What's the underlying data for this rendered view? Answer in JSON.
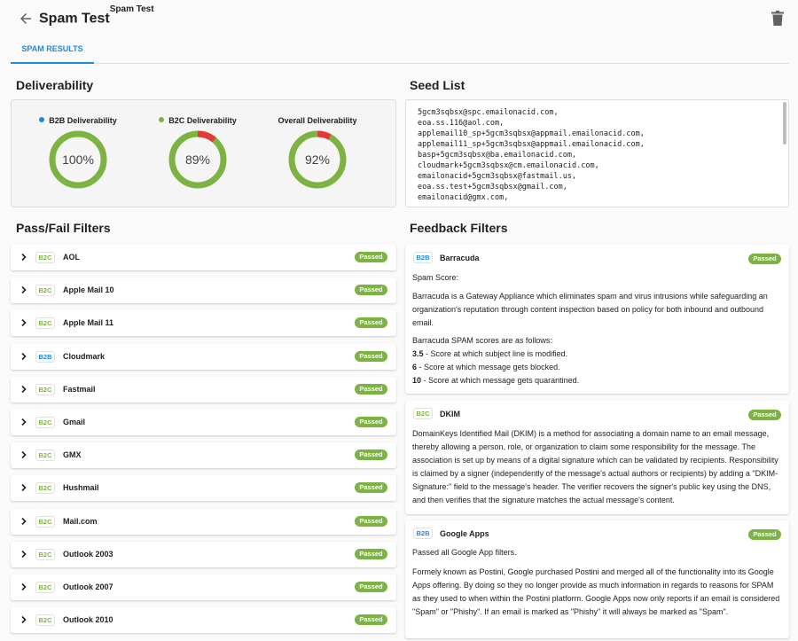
{
  "header": {
    "title": "Spam Test",
    "title_sup": "Spam Test"
  },
  "tabs": [
    {
      "label": "SPAM RESULTS",
      "active": true
    }
  ],
  "deliverability": {
    "title": "Deliverability",
    "gauges": [
      {
        "label": "B2B Deliverability",
        "value": "100%",
        "percent": 100,
        "dot_color": "#1e88e5",
        "has_dot": true
      },
      {
        "label": "B2C Deliverability",
        "value": "89%",
        "percent": 89,
        "dot_color": "#7cb342",
        "has_dot": true
      },
      {
        "label": "Overall Deliverability",
        "value": "92%",
        "percent": 92,
        "dot_color": "",
        "has_dot": false
      }
    ]
  },
  "seed_list": {
    "title": "Seed List",
    "emails": [
      "5gcm3sqbsx@spc.emailonacid.com,",
      "eoa.ss.116@aol.com,",
      "applemail10_sp+5gcm3sqbsx@appmail.emailonacid.com,",
      "applemail11_sp+5gcm3sqbsx@appmail.emailonacid.com,",
      "basp+5gcm3sqbsx@ba.emailonacid.com,",
      "cloudmark+5gcm3sqbsx@cm.emailonacid.com,",
      "emailonacid+5gcm3sqbsx@fastmail.us,",
      "eoa.ss.test+5gcm3sqbsx@gmail.com,",
      "emailonacid@gmx.com,"
    ]
  },
  "pass_fail": {
    "title": "Pass/Fail Filters",
    "passed_label": "Passed",
    "rows": [
      {
        "type": "B2C",
        "name": "AOL"
      },
      {
        "type": "B2C",
        "name": "Apple Mail 10"
      },
      {
        "type": "B2C",
        "name": "Apple Mail 11"
      },
      {
        "type": "B2B",
        "name": "Cloudmark"
      },
      {
        "type": "B2C",
        "name": "Fastmail"
      },
      {
        "type": "B2C",
        "name": "Gmail"
      },
      {
        "type": "B2C",
        "name": "GMX"
      },
      {
        "type": "B2C",
        "name": "Hushmail"
      },
      {
        "type": "B2C",
        "name": "Mail.com"
      },
      {
        "type": "B2C",
        "name": "Outlook 2003"
      },
      {
        "type": "B2C",
        "name": "Outlook 2007"
      },
      {
        "type": "B2C",
        "name": "Outlook 2010"
      }
    ]
  },
  "feedback": {
    "title": "Feedback Filters",
    "passed_label": "Passed",
    "barracuda": {
      "type": "B2B",
      "name": "Barracuda",
      "spam_score": "Spam Score:",
      "description": "Barracuda is a Gateway Appliance which eliminates spam and virus intrusions while safeguarding an organization's reputation through content inspection based on policy for both inbound and outbound email.",
      "scores_intro": "Barracuda SPAM scores are as follows:",
      "scores": [
        {
          "score": "3.5",
          "text": " - Score at which subject line is modified."
        },
        {
          "score": "6",
          "text": " - Score at which message gets blocked."
        },
        {
          "score": "10",
          "text": " - Score at which message gets quarantined."
        }
      ]
    },
    "dkim": {
      "type": "B2C",
      "name": "DKIM",
      "description": "DomainKeys Identified Mail (DKIM) is a method for associating a domain name to an email message, thereby allowing a person, role, or organization to claim some responsibility for the message. The association is set up by means of a digital signature which can be validated by recipients. Responsibility is claimed by a signer (independently of the message's actual authors or recipients) by adding a \"DKIM-Signature:\" field to the message's header. The verifier recovers the signer's public key using the DNS, and then verifies that the signature matches the actual message's content."
    },
    "google_apps": {
      "type": "B2B",
      "name": "Google Apps",
      "summary": "Passed all Google App filters.",
      "description": "Formely known as Postini, Google purchased Postini and merged all of the functionality into its Google Apps offering. By doing so they no longer provide as much information in regards to reasons for SPAM as they used to when within the Postini platform. Google Apps now only reports if an email is considered \"Spam\" or \"Phishy\". If an email is marked as \"Phishy\" it will always be marked as \"Spam\"."
    }
  },
  "colors": {
    "accent": "#1e88e5",
    "pass_green": "#7cb342",
    "fail_red": "#e53935",
    "gauge_track": "#7cb342"
  }
}
